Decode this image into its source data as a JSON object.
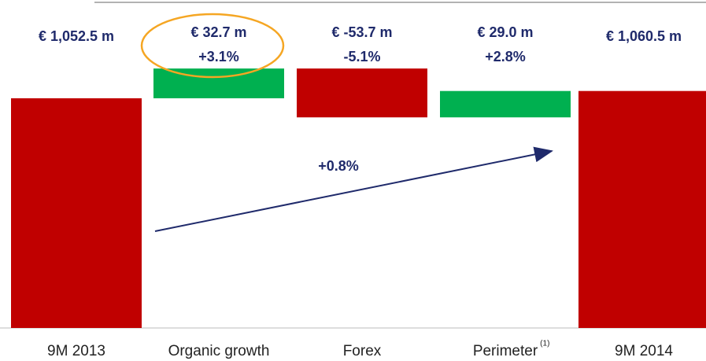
{
  "chart_data": {
    "type": "waterfall",
    "categories": [
      "9M 2013",
      "Organic growth",
      "Forex",
      "Perimeter",
      "9M 2014"
    ],
    "values": [
      1052.5,
      32.7,
      -53.7,
      29.0,
      1060.5
    ],
    "value_labels": [
      "€ 1,052.5 m",
      "€ 32.7 m",
      "€ -53.7 m",
      "€ 29.0 m",
      "€ 1,060.5 m"
    ],
    "change_labels": [
      null,
      "+3.1%",
      "-5.1%",
      "+2.8%",
      null
    ],
    "kinds": [
      "total",
      "delta",
      "delta",
      "delta",
      "total"
    ],
    "total_color": "#c00000",
    "increase_color": "#00b050",
    "decrease_color": "#c00000",
    "highlight": 1,
    "annotation": "+0.8%",
    "footnote": {
      "category": 3,
      "text": "(1)"
    },
    "ylim": [
      800,
      1100
    ]
  }
}
